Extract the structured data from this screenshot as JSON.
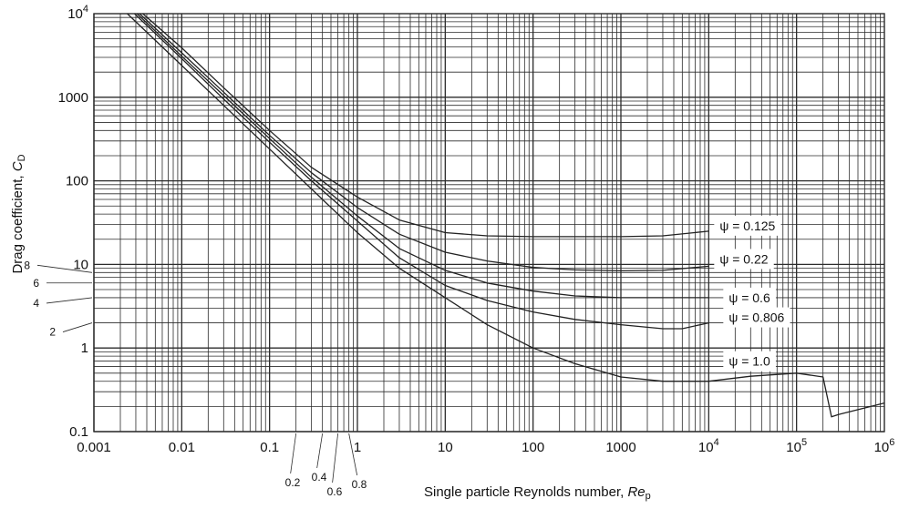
{
  "chart_data": {
    "type": "line",
    "x_scale": "log",
    "y_scale": "log",
    "xlim": [
      0.001,
      1000000
    ],
    "ylim": [
      0.1,
      10000
    ],
    "grid": true,
    "xlabel": "Single particle Reynolds number, Rep",
    "xlabel_parts": {
      "main": "Single particle Reynolds number, ",
      "symbol": "Re",
      "subscript": "p"
    },
    "ylabel": "Drag coefficient, CD",
    "ylabel_parts": {
      "main": "Drag coefficient, ",
      "symbol": "C",
      "subscript": "D"
    },
    "x_ticks": [
      {
        "value": 0.001,
        "label": "0.001"
      },
      {
        "value": 0.01,
        "label": "0.01"
      },
      {
        "value": 0.1,
        "label": "0.1"
      },
      {
        "value": 1,
        "label": "1"
      },
      {
        "value": 10,
        "label": "10"
      },
      {
        "value": 100,
        "label": "100"
      },
      {
        "value": 1000,
        "label": "1000"
      },
      {
        "value": 10000,
        "base": "10",
        "exp": "4"
      },
      {
        "value": 100000,
        "base": "10",
        "exp": "5"
      },
      {
        "value": 1000000,
        "base": "10",
        "exp": "6"
      }
    ],
    "y_ticks": [
      {
        "value": 0.1,
        "label": "0.1"
      },
      {
        "value": 1,
        "label": "1"
      },
      {
        "value": 10,
        "label": "10"
      },
      {
        "value": 100,
        "label": "100"
      },
      {
        "value": 1000,
        "label": "1000"
      },
      {
        "value": 10000,
        "base": "10",
        "exp": "4"
      }
    ],
    "x_minor_labels": [
      {
        "value": 0.2,
        "label": "0.2"
      },
      {
        "value": 0.4,
        "label": "0.4"
      },
      {
        "value": 0.6,
        "label": "0.6"
      },
      {
        "value": 0.8,
        "label": "0.8"
      }
    ],
    "y_minor_labels": [
      {
        "value": 2,
        "label": "2"
      },
      {
        "value": 4,
        "label": "4"
      },
      {
        "value": 6,
        "label": "6"
      },
      {
        "value": 8,
        "label": "8"
      }
    ],
    "series": [
      {
        "name": "ψ = 0.125",
        "x": [
          0.0036,
          0.01,
          0.03,
          0.1,
          0.3,
          1,
          3,
          10,
          30,
          100,
          300,
          1000,
          3000,
          10000
        ],
        "y": [
          10000,
          3900,
          1300,
          400,
          145,
          64,
          34,
          24,
          22,
          21.5,
          21.5,
          21.5,
          22,
          25
        ]
      },
      {
        "name": "ψ = 0.22",
        "x": [
          0.0033,
          0.01,
          0.03,
          0.1,
          0.3,
          1,
          3,
          10,
          30,
          100,
          300,
          1000,
          3000,
          10000
        ],
        "y": [
          10000,
          3400,
          1150,
          350,
          125,
          48,
          23,
          14,
          11,
          9.2,
          8.6,
          8.4,
          8.5,
          9.5
        ]
      },
      {
        "name": "ψ = 0.6",
        "x": [
          0.0031,
          0.01,
          0.03,
          0.1,
          0.3,
          1,
          3,
          10,
          30,
          100,
          300,
          1000,
          3000,
          10000
        ],
        "y": [
          10000,
          3100,
          1050,
          320,
          110,
          38,
          15.5,
          8.5,
          6,
          4.8,
          4.2,
          4,
          4,
          4
        ]
      },
      {
        "name": "ψ = 0.806",
        "x": [
          0.0029,
          0.01,
          0.03,
          0.1,
          0.3,
          1,
          3,
          10,
          30,
          100,
          300,
          1000,
          3000,
          5000,
          10000
        ],
        "y": [
          10000,
          2900,
          950,
          290,
          100,
          33,
          12,
          5.6,
          3.7,
          2.7,
          2.2,
          1.9,
          1.7,
          1.7,
          2
        ]
      },
      {
        "name": "ψ = 1.0",
        "x": [
          0.0024,
          0.01,
          0.03,
          0.1,
          0.3,
          1,
          3,
          10,
          30,
          100,
          300,
          1000,
          3000,
          10000,
          30000,
          100000,
          200000,
          250000,
          300000,
          1000000
        ],
        "y": [
          10000,
          2400,
          800,
          240,
          80,
          24,
          9,
          4,
          1.9,
          1,
          0.65,
          0.45,
          0.4,
          0.4,
          0.46,
          0.5,
          0.45,
          0.15,
          0.16,
          0.22
        ]
      }
    ],
    "annotations": [
      {
        "series": "ψ = 0.125",
        "text": "ψ = 0.125"
      },
      {
        "series": "ψ = 0.22",
        "text": "ψ = 0.22"
      },
      {
        "series": "ψ = 0.6",
        "text": "ψ = 0.6"
      },
      {
        "series": "ψ = 0.806",
        "text": "ψ = 0.806"
      },
      {
        "series": "ψ = 1.0",
        "text": "ψ = 1.0"
      }
    ],
    "colors": {
      "line": "#222222",
      "grid": "#2b2b2b",
      "background": "#ffffff"
    }
  }
}
